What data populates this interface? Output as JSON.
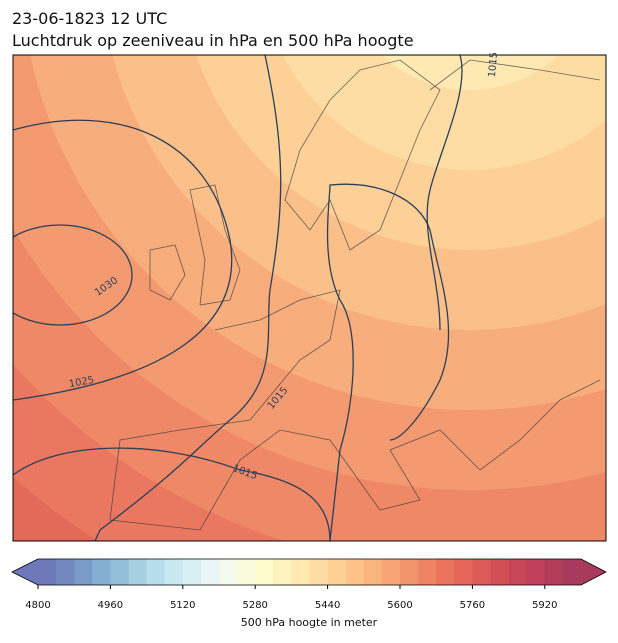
{
  "title": "23-06-1823 12 UTC",
  "subtitle": "Luchtdruk op zeeniveau in hPa en 500 hPa hoogte",
  "contour_labels": [
    "1030",
    "1025",
    "1015",
    "1015",
    "1015"
  ],
  "colorbar": {
    "label": "500 hPa hoogte in meter",
    "lim": [
      4800,
      6000
    ],
    "ticks": [
      4800,
      4960,
      5120,
      5280,
      5440,
      5600,
      5760,
      5920
    ],
    "extend": "both",
    "colors": [
      "#6f78b8",
      "#7388c0",
      "#7a9bc8",
      "#84aed2",
      "#93bfdb",
      "#a5cfe3",
      "#b7dcea",
      "#c9e7f0",
      "#d9eff5",
      "#e8f6f8",
      "#f3f9ef",
      "#fafbdd",
      "#fefbcc",
      "#fef3bf",
      "#fee9b1",
      "#fddda3",
      "#fdd096",
      "#fcc289",
      "#fab47e",
      "#f7a575",
      "#f3946c",
      "#ef8464",
      "#ea745e",
      "#e36659",
      "#dc5a57",
      "#d34f56",
      "#c94658",
      "#be405a",
      "#b23d5d",
      "#a83a5e"
    ]
  }
}
